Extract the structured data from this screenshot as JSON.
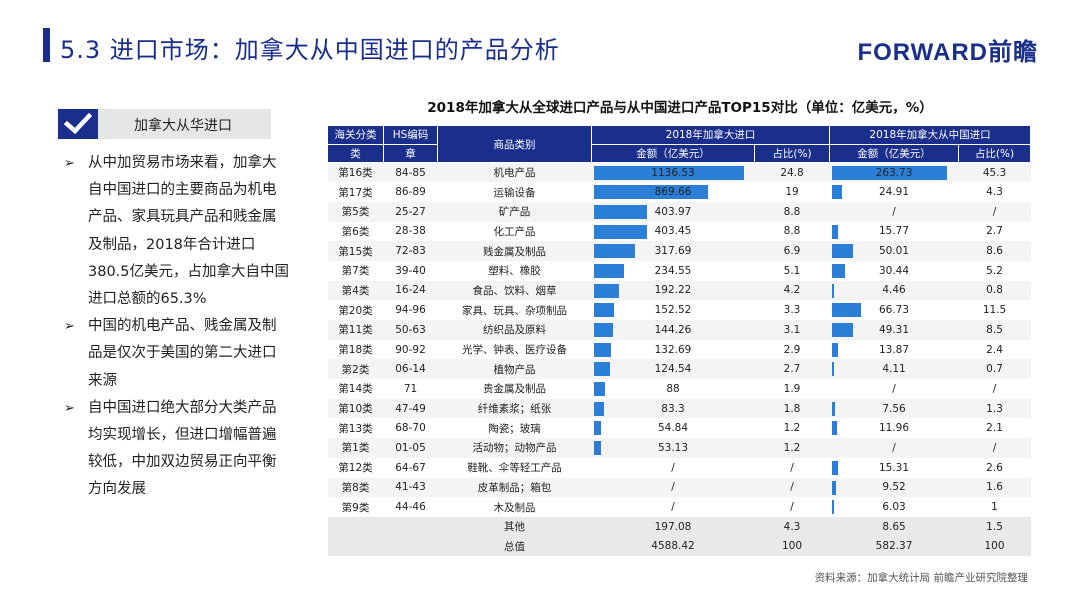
{
  "header": {
    "title": "5.3 进口市场：加拿大从中国进口的产品分析",
    "logo": "FORWARD前瞻"
  },
  "tag": {
    "label": "加拿大从华进口"
  },
  "bullets": [
    "从中加贸易市场来看，加拿大自中国进口的主要商品为机电产品、家具玩具产品和贱金属及制品，2018年合计进口380.5亿美元，占加拿大自中国进口总额的65.3%",
    "中国的机电产品、贱金属及制品是仅次于美国的第二大进口来源",
    "自中国进口绝大部分大类产品均实现增长，但进口增幅普遍较低，中加双边贸易正向平衡方向发展"
  ],
  "table": {
    "title": "2018年加拿大从全球进口产品与从中国进口产品TOP15对比（单位：亿美元，%）",
    "headers": {
      "customs_class": "海关分类",
      "customs_class_2": "类",
      "hs_code": "HS编码",
      "hs_code_2": "章",
      "category": "商品类别",
      "global_group": "2018年加拿大进口",
      "china_group": "2018年加拿大从中国进口",
      "amount": "金额（亿美元）",
      "share": "占比(%)"
    },
    "rows": [
      {
        "cls": "第16类",
        "hs": "84-85",
        "name": "机电产品",
        "g_amt": "1136.53",
        "g_pct": "24.8",
        "c_amt": "263.73",
        "c_pct": "45.3"
      },
      {
        "cls": "第17类",
        "hs": "86-89",
        "name": "运输设备",
        "g_amt": "869.66",
        "g_pct": "19",
        "c_amt": "24.91",
        "c_pct": "4.3"
      },
      {
        "cls": "第5类",
        "hs": "25-27",
        "name": "矿产品",
        "g_amt": "403.97",
        "g_pct": "8.8",
        "c_amt": "/",
        "c_pct": "/"
      },
      {
        "cls": "第6类",
        "hs": "28-38",
        "name": "化工产品",
        "g_amt": "403.45",
        "g_pct": "8.8",
        "c_amt": "15.77",
        "c_pct": "2.7"
      },
      {
        "cls": "第15类",
        "hs": "72-83",
        "name": "贱金属及制品",
        "g_amt": "317.69",
        "g_pct": "6.9",
        "c_amt": "50.01",
        "c_pct": "8.6"
      },
      {
        "cls": "第7类",
        "hs": "39-40",
        "name": "塑料、橡胶",
        "g_amt": "234.55",
        "g_pct": "5.1",
        "c_amt": "30.44",
        "c_pct": "5.2"
      },
      {
        "cls": "第4类",
        "hs": "16-24",
        "name": "食品、饮料、烟草",
        "g_amt": "192.22",
        "g_pct": "4.2",
        "c_amt": "4.46",
        "c_pct": "0.8"
      },
      {
        "cls": "第20类",
        "hs": "94-96",
        "name": "家具、玩具、杂项制品",
        "g_amt": "152.52",
        "g_pct": "3.3",
        "c_amt": "66.73",
        "c_pct": "11.5"
      },
      {
        "cls": "第11类",
        "hs": "50-63",
        "name": "纺织品及原料",
        "g_amt": "144.26",
        "g_pct": "3.1",
        "c_amt": "49.31",
        "c_pct": "8.5"
      },
      {
        "cls": "第18类",
        "hs": "90-92",
        "name": "光学、钟表、医疗设备",
        "g_amt": "132.69",
        "g_pct": "2.9",
        "c_amt": "13.87",
        "c_pct": "2.4"
      },
      {
        "cls": "第2类",
        "hs": "06-14",
        "name": "植物产品",
        "g_amt": "124.54",
        "g_pct": "2.7",
        "c_amt": "4.11",
        "c_pct": "0.7"
      },
      {
        "cls": "第14类",
        "hs": "71",
        "name": "贵金属及制品",
        "g_amt": "88",
        "g_pct": "1.9",
        "c_amt": "/",
        "c_pct": "/"
      },
      {
        "cls": "第10类",
        "hs": "47-49",
        "name": "纤维素浆；纸张",
        "g_amt": "83.3",
        "g_pct": "1.8",
        "c_amt": "7.56",
        "c_pct": "1.3"
      },
      {
        "cls": "第13类",
        "hs": "68-70",
        "name": "陶瓷；玻璃",
        "g_amt": "54.84",
        "g_pct": "1.2",
        "c_amt": "11.96",
        "c_pct": "2.1"
      },
      {
        "cls": "第1类",
        "hs": "01-05",
        "name": "活动物；动物产品",
        "g_amt": "53.13",
        "g_pct": "1.2",
        "c_amt": "/",
        "c_pct": "/"
      },
      {
        "cls": "第12类",
        "hs": "64-67",
        "name": "鞋靴、伞等轻工产品",
        "g_amt": "/",
        "g_pct": "/",
        "c_amt": "15.31",
        "c_pct": "2.6"
      },
      {
        "cls": "第8类",
        "hs": "41-43",
        "name": "皮革制品；箱包",
        "g_amt": "/",
        "g_pct": "/",
        "c_amt": "9.52",
        "c_pct": "1.6"
      },
      {
        "cls": "第9类",
        "hs": "44-46",
        "name": "木及制品",
        "g_amt": "/",
        "g_pct": "/",
        "c_amt": "6.03",
        "c_pct": "1"
      }
    ],
    "other": {
      "name": "其他",
      "g_amt": "197.08",
      "g_pct": "4.3",
      "c_amt": "8.65",
      "c_pct": "1.5"
    },
    "total": {
      "name": "总值",
      "g_amt": "4588.42",
      "g_pct": "100",
      "c_amt": "582.37",
      "c_pct": "100"
    },
    "bar_color": "#2b7fd6",
    "header_color": "#1a2e8c"
  },
  "source": "资料来源：加拿大统计局  前瞻产业研究院整理"
}
